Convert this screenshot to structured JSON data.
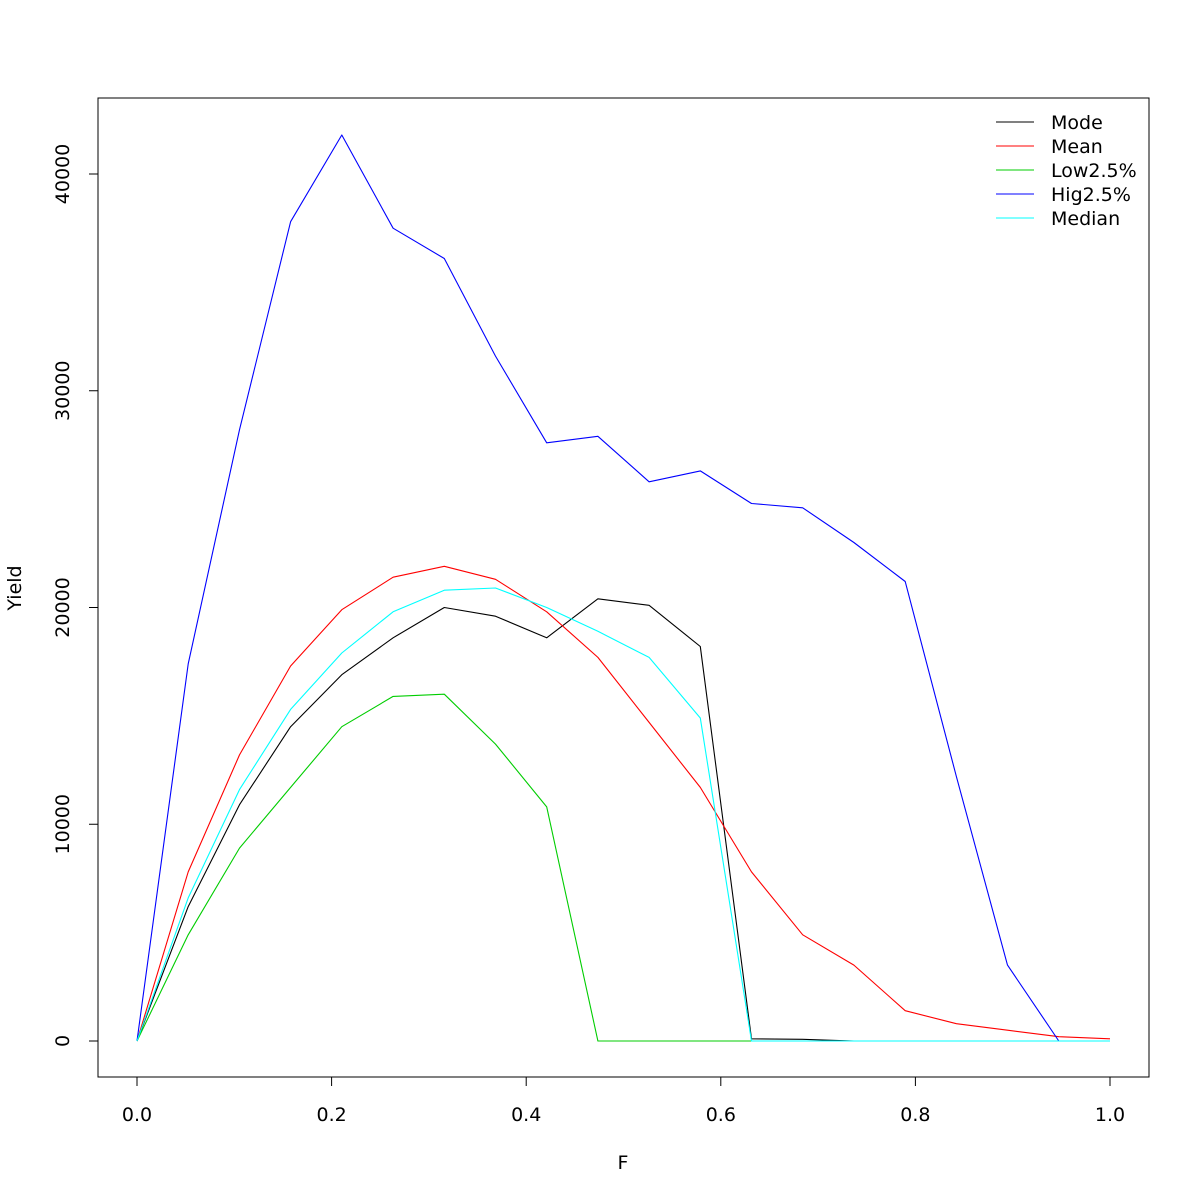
{
  "chart_data": {
    "type": "line",
    "title": "",
    "xlabel": "F",
    "ylabel": "Yield",
    "xlim": [
      0,
      1
    ],
    "ylim": [
      0,
      42000
    ],
    "x_ticks": [
      0.0,
      0.2,
      0.4,
      0.6,
      0.8,
      1.0
    ],
    "x_tick_labels": [
      "0.0",
      "0.2",
      "0.4",
      "0.6",
      "0.8",
      "1.0"
    ],
    "y_ticks": [
      0,
      10000,
      20000,
      30000,
      40000
    ],
    "y_tick_labels": [
      "0",
      "10000",
      "20000",
      "30000",
      "40000"
    ],
    "grid": false,
    "legend_position": "top-right",
    "x": [
      0.0,
      0.0526,
      0.1053,
      0.1579,
      0.2105,
      0.2632,
      0.3158,
      0.3684,
      0.4211,
      0.4737,
      0.5263,
      0.5789,
      0.6316,
      0.6842,
      0.7368,
      0.7895,
      0.8421,
      0.8947,
      0.9474,
      1.0
    ],
    "series": [
      {
        "name": "Mode",
        "color": "#000000",
        "values": [
          0,
          6200,
          10900,
          14500,
          16900,
          18600,
          20000,
          19600,
          18600,
          20400,
          20100,
          18200,
          100,
          80,
          0,
          0,
          0,
          0,
          0,
          0
        ]
      },
      {
        "name": "Mean",
        "color": "#ff0000",
        "values": [
          0,
          7800,
          13200,
          17300,
          19900,
          21400,
          21900,
          21300,
          19800,
          17700,
          14700,
          11700,
          7800,
          4900,
          3500,
          1400,
          800,
          500,
          200,
          100
        ]
      },
      {
        "name": "Low2.5%",
        "color": "#00cd00",
        "values": [
          0,
          4900,
          8900,
          11700,
          14500,
          15900,
          16000,
          13700,
          10800,
          0,
          0,
          0,
          0,
          0,
          0,
          0,
          0,
          0,
          0,
          0
        ]
      },
      {
        "name": "Hig2.5%",
        "color": "#0000ff",
        "values": [
          0,
          17400,
          28200,
          37800,
          41800,
          37500,
          36100,
          31600,
          27600,
          27900,
          25800,
          26300,
          24800,
          24600,
          23000,
          21200,
          12200,
          3500,
          0,
          0
        ]
      },
      {
        "name": "Median",
        "color": "#00ffff",
        "values": [
          0,
          6600,
          11600,
          15300,
          17900,
          19800,
          20800,
          20900,
          20000,
          18900,
          17700,
          14900,
          0,
          0,
          0,
          0,
          0,
          0,
          0,
          0
        ]
      }
    ]
  }
}
